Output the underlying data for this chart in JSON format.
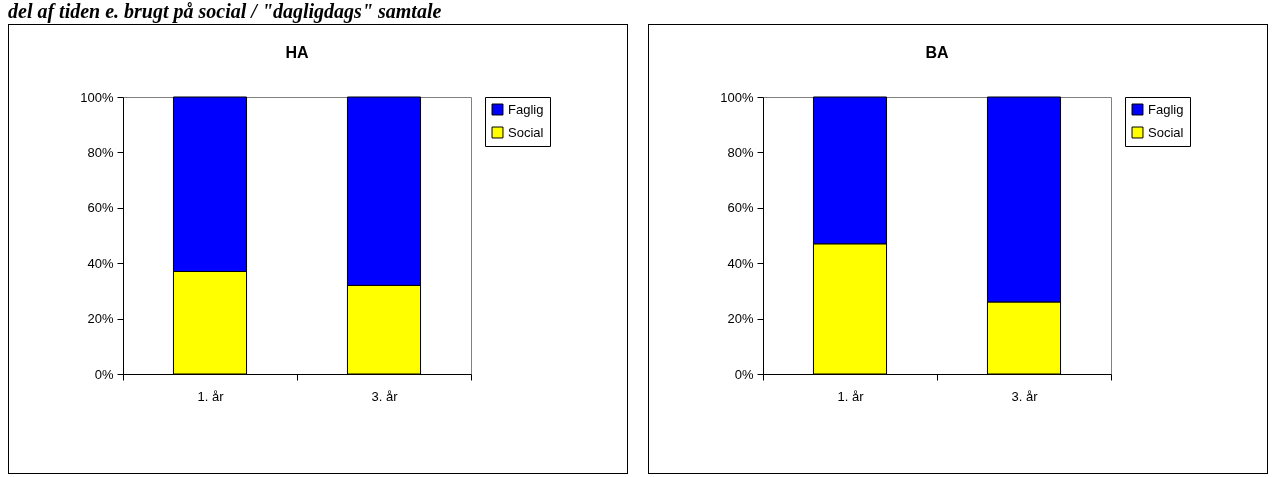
{
  "chart_data": [
    {
      "type": "bar",
      "title": "HA",
      "annotations": [
        "del af tiden e. brugt på social / \"dagligdags\" samtale"
      ],
      "categories": [
        "1. år",
        "3. år"
      ],
      "stacked": true,
      "series": [
        {
          "name": "Social",
          "color": "#ffff00",
          "values": [
            37,
            32
          ]
        },
        {
          "name": "Faglig",
          "color": "#0000ff",
          "values": [
            63,
            68
          ]
        }
      ],
      "ylim": [
        0,
        100
      ],
      "yticks": [
        {
          "value": 0,
          "label": "0%"
        },
        {
          "value": 20,
          "label": "20%"
        },
        {
          "value": 40,
          "label": "40%"
        },
        {
          "value": 60,
          "label": "60%"
        },
        {
          "value": 80,
          "label": "80%"
        },
        {
          "value": 100,
          "label": "100%"
        }
      ],
      "legend": "right"
    },
    {
      "type": "bar",
      "title": "BA",
      "categories": [
        "1. år",
        "3. år"
      ],
      "stacked": true,
      "series": [
        {
          "name": "Social",
          "color": "#ffff00",
          "values": [
            47,
            26
          ]
        },
        {
          "name": "Faglig",
          "color": "#0000ff",
          "values": [
            53,
            74
          ]
        }
      ],
      "ylim": [
        0,
        100
      ],
      "yticks": [
        {
          "value": 0,
          "label": "0%"
        },
        {
          "value": 20,
          "label": "20%"
        },
        {
          "value": 40,
          "label": "40%"
        },
        {
          "value": 60,
          "label": "60%"
        },
        {
          "value": 80,
          "label": "80%"
        },
        {
          "value": 100,
          "label": "100%"
        }
      ],
      "legend": "right"
    }
  ]
}
